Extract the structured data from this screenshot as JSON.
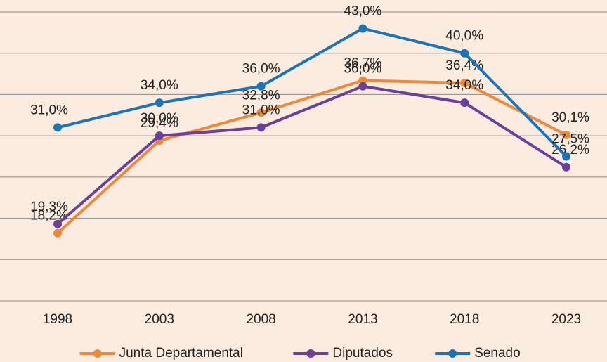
{
  "chart_data": {
    "type": "line",
    "categories": [
      "1998",
      "2003",
      "2008",
      "2013",
      "2018",
      "2023"
    ],
    "series": [
      {
        "name": "Junta Departamental",
        "color": "#f0883c",
        "values": [
          18.2,
          29.4,
          32.8,
          36.7,
          36.4,
          30.1
        ],
        "value_labels": [
          "18,2%",
          "29,4%",
          "32,8%",
          "36,7%",
          "36,4%",
          "30,1%"
        ]
      },
      {
        "name": "Diputados",
        "color": "#6a3f9e",
        "values": [
          19.3,
          30.0,
          31.0,
          36.0,
          34.0,
          26.2
        ],
        "value_labels": [
          "19,3%",
          "30,0%",
          "31,0%",
          "36,0%",
          "34,0%",
          "26,2%"
        ]
      },
      {
        "name": "Senado",
        "color": "#1b74ba",
        "values": [
          31.0,
          34.0,
          36.0,
          43.0,
          40.0,
          27.5
        ],
        "value_labels": [
          "31,0%",
          "34,0%",
          "36,0%",
          "43,0%",
          "40,0%",
          "27,5%"
        ]
      }
    ],
    "ylim": [
      10,
      45
    ],
    "yticks": [
      10,
      15,
      20,
      25,
      30,
      35,
      40,
      45
    ],
    "grid": true,
    "legend": "bottom"
  }
}
